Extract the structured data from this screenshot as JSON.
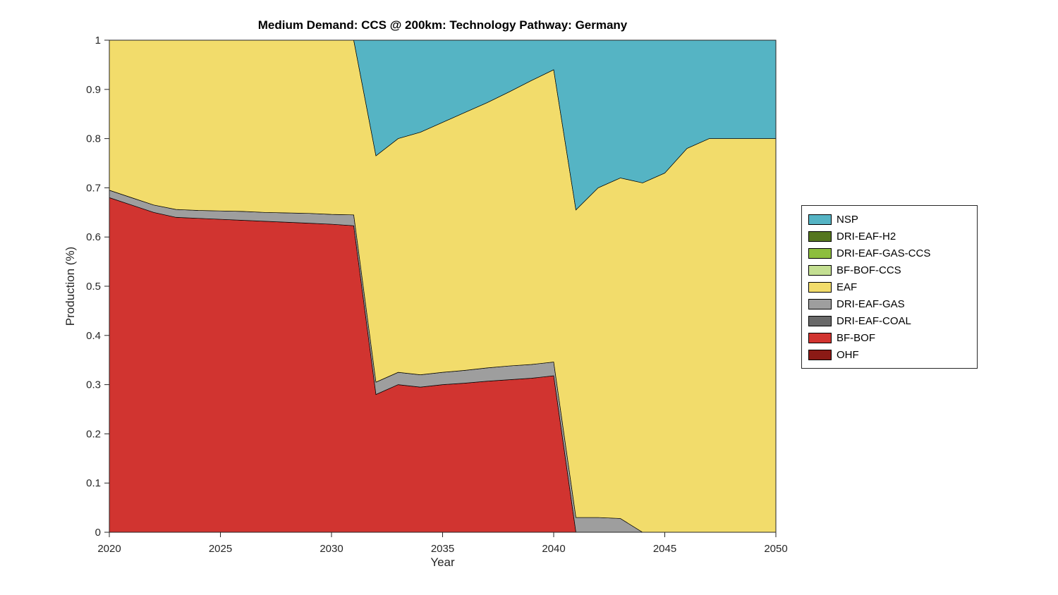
{
  "chart_data": {
    "type": "area",
    "stacked": true,
    "title": "Medium Demand: CCS @ 200km: Technology Pathway: Germany",
    "xlabel": "Year",
    "ylabel": "Production (%)",
    "xlim": [
      2020,
      2050
    ],
    "ylim": [
      0,
      1
    ],
    "xticks": [
      2020,
      2025,
      2030,
      2035,
      2040,
      2045,
      2050
    ],
    "yticks": [
      0,
      0.1,
      0.2,
      0.3,
      0.4,
      0.5,
      0.6,
      0.7,
      0.8,
      0.9,
      1
    ],
    "ytick_labels": [
      "0",
      "0.1",
      "0.2",
      "0.3",
      "0.4",
      "0.5",
      "0.6",
      "0.7",
      "0.8",
      "0.9",
      "1"
    ],
    "grid": false,
    "legend_position": "right-outside",
    "x": [
      2020,
      2021,
      2022,
      2023,
      2024,
      2025,
      2026,
      2027,
      2028,
      2029,
      2030,
      2031,
      2032,
      2033,
      2034,
      2035,
      2036,
      2037,
      2038,
      2039,
      2040,
      2041,
      2042,
      2043,
      2044,
      2045,
      2046,
      2047,
      2048,
      2049,
      2050
    ],
    "series": [
      {
        "name": "OHF",
        "color": "#8B1A15",
        "values": [
          0,
          0,
          0,
          0,
          0,
          0,
          0,
          0,
          0,
          0,
          0,
          0,
          0,
          0,
          0,
          0,
          0,
          0,
          0,
          0,
          0,
          0,
          0,
          0,
          0,
          0,
          0,
          0,
          0,
          0,
          0
        ]
      },
      {
        "name": "BF-BOF",
        "color": "#D13430",
        "values": [
          0.68,
          0.665,
          0.65,
          0.64,
          0.638,
          0.636,
          0.634,
          0.632,
          0.63,
          0.628,
          0.626,
          0.623,
          0.28,
          0.3,
          0.295,
          0.3,
          0.303,
          0.307,
          0.31,
          0.313,
          0.318,
          0,
          0,
          0,
          0,
          0,
          0,
          0,
          0,
          0,
          0
        ]
      },
      {
        "name": "DRI-EAF-COAL",
        "color": "#696969",
        "values": [
          0,
          0,
          0,
          0,
          0,
          0,
          0,
          0,
          0,
          0,
          0,
          0,
          0,
          0,
          0,
          0,
          0,
          0,
          0,
          0,
          0,
          0,
          0,
          0,
          0,
          0,
          0,
          0,
          0,
          0,
          0
        ]
      },
      {
        "name": "DRI-EAF-GAS",
        "color": "#9E9E9E",
        "values": [
          0.015,
          0.015,
          0.015,
          0.016,
          0.016,
          0.017,
          0.018,
          0.018,
          0.019,
          0.02,
          0.02,
          0.022,
          0.025,
          0.025,
          0.025,
          0.025,
          0.026,
          0.027,
          0.028,
          0.028,
          0.028,
          0.03,
          0.03,
          0.028,
          0,
          0,
          0,
          0,
          0,
          0,
          0
        ]
      },
      {
        "name": "EAF",
        "color": "#F2DC6B",
        "values": [
          0.305,
          0.32,
          0.335,
          0.344,
          0.346,
          0.347,
          0.348,
          0.35,
          0.351,
          0.352,
          0.354,
          0.355,
          0.46,
          0.475,
          0.493,
          0.508,
          0.524,
          0.539,
          0.557,
          0.577,
          0.594,
          0.625,
          0.67,
          0.692,
          0.71,
          0.73,
          0.78,
          0.8,
          0.8,
          0.8,
          0.8
        ]
      },
      {
        "name": "BF-BOF-CCS",
        "color": "#C4DF92",
        "values": [
          0,
          0,
          0,
          0,
          0,
          0,
          0,
          0,
          0,
          0,
          0,
          0,
          0,
          0,
          0,
          0,
          0,
          0,
          0,
          0,
          0,
          0,
          0,
          0,
          0,
          0,
          0,
          0,
          0,
          0,
          0
        ]
      },
      {
        "name": "DRI-EAF-GAS-CCS",
        "color": "#8DBE3D",
        "values": [
          0,
          0,
          0,
          0,
          0,
          0,
          0,
          0,
          0,
          0,
          0,
          0,
          0,
          0,
          0,
          0,
          0,
          0,
          0,
          0,
          0,
          0,
          0,
          0,
          0,
          0,
          0,
          0,
          0,
          0,
          0
        ]
      },
      {
        "name": "DRI-EAF-H2",
        "color": "#55761E",
        "values": [
          0,
          0,
          0,
          0,
          0,
          0,
          0,
          0,
          0,
          0,
          0,
          0,
          0,
          0,
          0,
          0,
          0,
          0,
          0,
          0,
          0,
          0,
          0,
          0,
          0,
          0,
          0,
          0,
          0,
          0,
          0
        ]
      },
      {
        "name": "NSP",
        "color": "#55B4C4",
        "values": [
          0,
          0,
          0,
          0,
          0,
          0,
          0,
          0,
          0,
          0,
          0,
          0,
          0.235,
          0.2,
          0.187,
          0.167,
          0.147,
          0.127,
          0.105,
          0.082,
          0.06,
          0.345,
          0.3,
          0.28,
          0.29,
          0.27,
          0.22,
          0.2,
          0.2,
          0.2,
          0.2
        ]
      }
    ],
    "legend": [
      {
        "label": "NSP",
        "color": "#55B4C4"
      },
      {
        "label": "DRI-EAF-H2",
        "color": "#55761E"
      },
      {
        "label": "DRI-EAF-GAS-CCS",
        "color": "#8DBE3D"
      },
      {
        "label": "BF-BOF-CCS",
        "color": "#C4DF92"
      },
      {
        "label": "EAF",
        "color": "#F2DC6B"
      },
      {
        "label": "DRI-EAF-GAS",
        "color": "#9E9E9E"
      },
      {
        "label": "DRI-EAF-COAL",
        "color": "#696969"
      },
      {
        "label": "BF-BOF",
        "color": "#D13430"
      },
      {
        "label": "OHF",
        "color": "#8B1A15"
      }
    ]
  }
}
